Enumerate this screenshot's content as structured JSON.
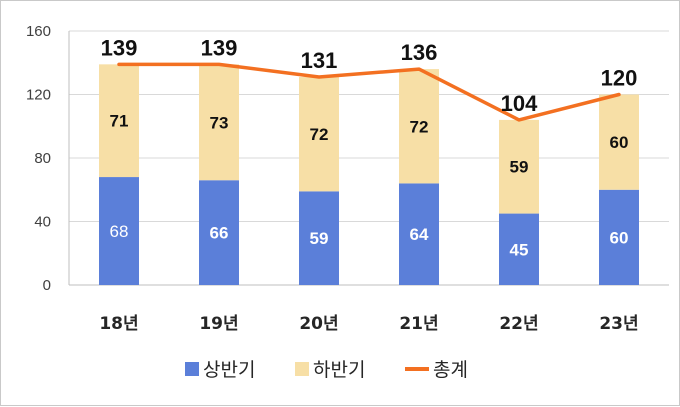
{
  "chart_data": {
    "type": "bar",
    "stacked": true,
    "categories": [
      "18년",
      "19년",
      "20년",
      "21년",
      "22년",
      "23년"
    ],
    "series": [
      {
        "name": "상반기",
        "values": [
          68,
          66,
          59,
          64,
          45,
          60
        ],
        "color": "#5b7fd9",
        "kind": "bar"
      },
      {
        "name": "하반기",
        "values": [
          71,
          73,
          72,
          72,
          59,
          60
        ],
        "color": "#f7dfa6",
        "kind": "bar"
      },
      {
        "name": "총계",
        "values": [
          139,
          139,
          131,
          136,
          104,
          120
        ],
        "color": "#f37021",
        "kind": "line"
      }
    ],
    "ylim": [
      0,
      160
    ],
    "yticks": [
      0,
      40,
      80,
      120,
      160
    ],
    "grid": true,
    "legend_position": "bottom"
  }
}
